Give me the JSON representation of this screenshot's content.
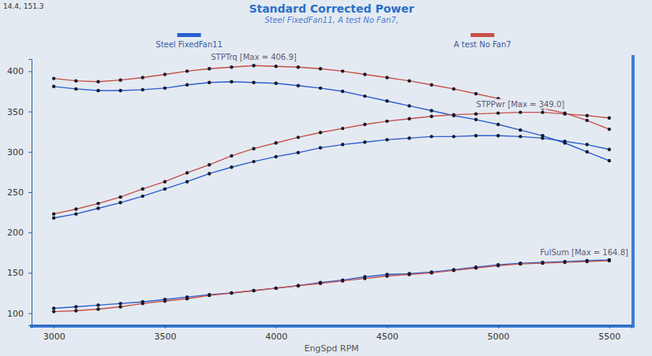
{
  "chart_data": {
    "type": "line",
    "title": "Standard Corrected Power",
    "subtitle": "Steel FixedFan11, A test No Fan7,",
    "corner_text": "14.4, 151.3",
    "x_label": "EngSpd RPM",
    "x": [
      3000,
      3100,
      3200,
      3300,
      3400,
      3500,
      3600,
      3700,
      3800,
      3900,
      4000,
      4100,
      4200,
      4300,
      4400,
      4500,
      4600,
      4700,
      4800,
      4900,
      5000,
      5100,
      5200,
      5300,
      5400,
      5500
    ],
    "xlim": [
      2900,
      5600
    ],
    "xticks": [
      3000,
      3500,
      4000,
      4500,
      5000,
      5500
    ],
    "ylim": [
      85,
      415
    ],
    "yticks": [
      100,
      150,
      200,
      250,
      300,
      350,
      400
    ],
    "grid": false,
    "legend": "top",
    "marker": "circle",
    "series": [
      {
        "name": "Steel FixedFan11",
        "color": "#2b5fd0",
        "values": [
          381,
          378,
          376,
          376,
          377,
          379,
          383,
          386,
          387,
          386,
          385,
          382,
          379,
          375,
          369,
          363,
          357,
          351,
          345,
          340,
          334,
          327,
          320,
          311,
          300,
          289
        ]
      },
      {
        "name": "A test No Fan7",
        "color": "#c8504a",
        "values": [
          391,
          388,
          387,
          389,
          392,
          396,
          400,
          403,
          405,
          407,
          406,
          405,
          403,
          400,
          396,
          392,
          388,
          383,
          378,
          372,
          366,
          360,
          354,
          348,
          339,
          328
        ]
      },
      {
        "name": "Steel FixedFan11",
        "color": "#2b5fd0",
        "values": [
          218,
          223,
          230,
          237,
          245,
          254,
          263,
          273,
          281,
          288,
          294,
          299,
          305,
          309,
          312,
          315,
          317,
          319,
          319,
          320,
          320,
          319,
          317,
          313,
          309,
          303
        ]
      },
      {
        "name": "A test No Fan7",
        "color": "#c8504a",
        "values": [
          223,
          229,
          236,
          244,
          254,
          263,
          274,
          284,
          295,
          304,
          311,
          318,
          324,
          329,
          334,
          338,
          341,
          344,
          346,
          347,
          348,
          349,
          349,
          347,
          345,
          342
        ]
      },
      {
        "name": "Steel FixedFan11",
        "color": "#2b5fd0",
        "values": [
          106,
          108,
          110,
          112,
          114,
          117,
          120,
          123,
          125,
          128,
          131,
          134,
          138,
          141,
          145,
          148,
          149,
          151,
          154,
          157,
          160,
          162,
          163,
          164,
          165,
          166
        ]
      },
      {
        "name": "A test No Fan7",
        "color": "#c8504a",
        "values": [
          102,
          103,
          105,
          108,
          112,
          115,
          118,
          122,
          125,
          128,
          131,
          134,
          137,
          140,
          143,
          146,
          148,
          150,
          153,
          156,
          159,
          161,
          162,
          163,
          164,
          165
        ]
      }
    ],
    "annotations": [
      "STPTrq [Max = 406.9]",
      "STPPwr [Max = 349.0]",
      "FulSum [Max = 164.8]"
    ]
  }
}
